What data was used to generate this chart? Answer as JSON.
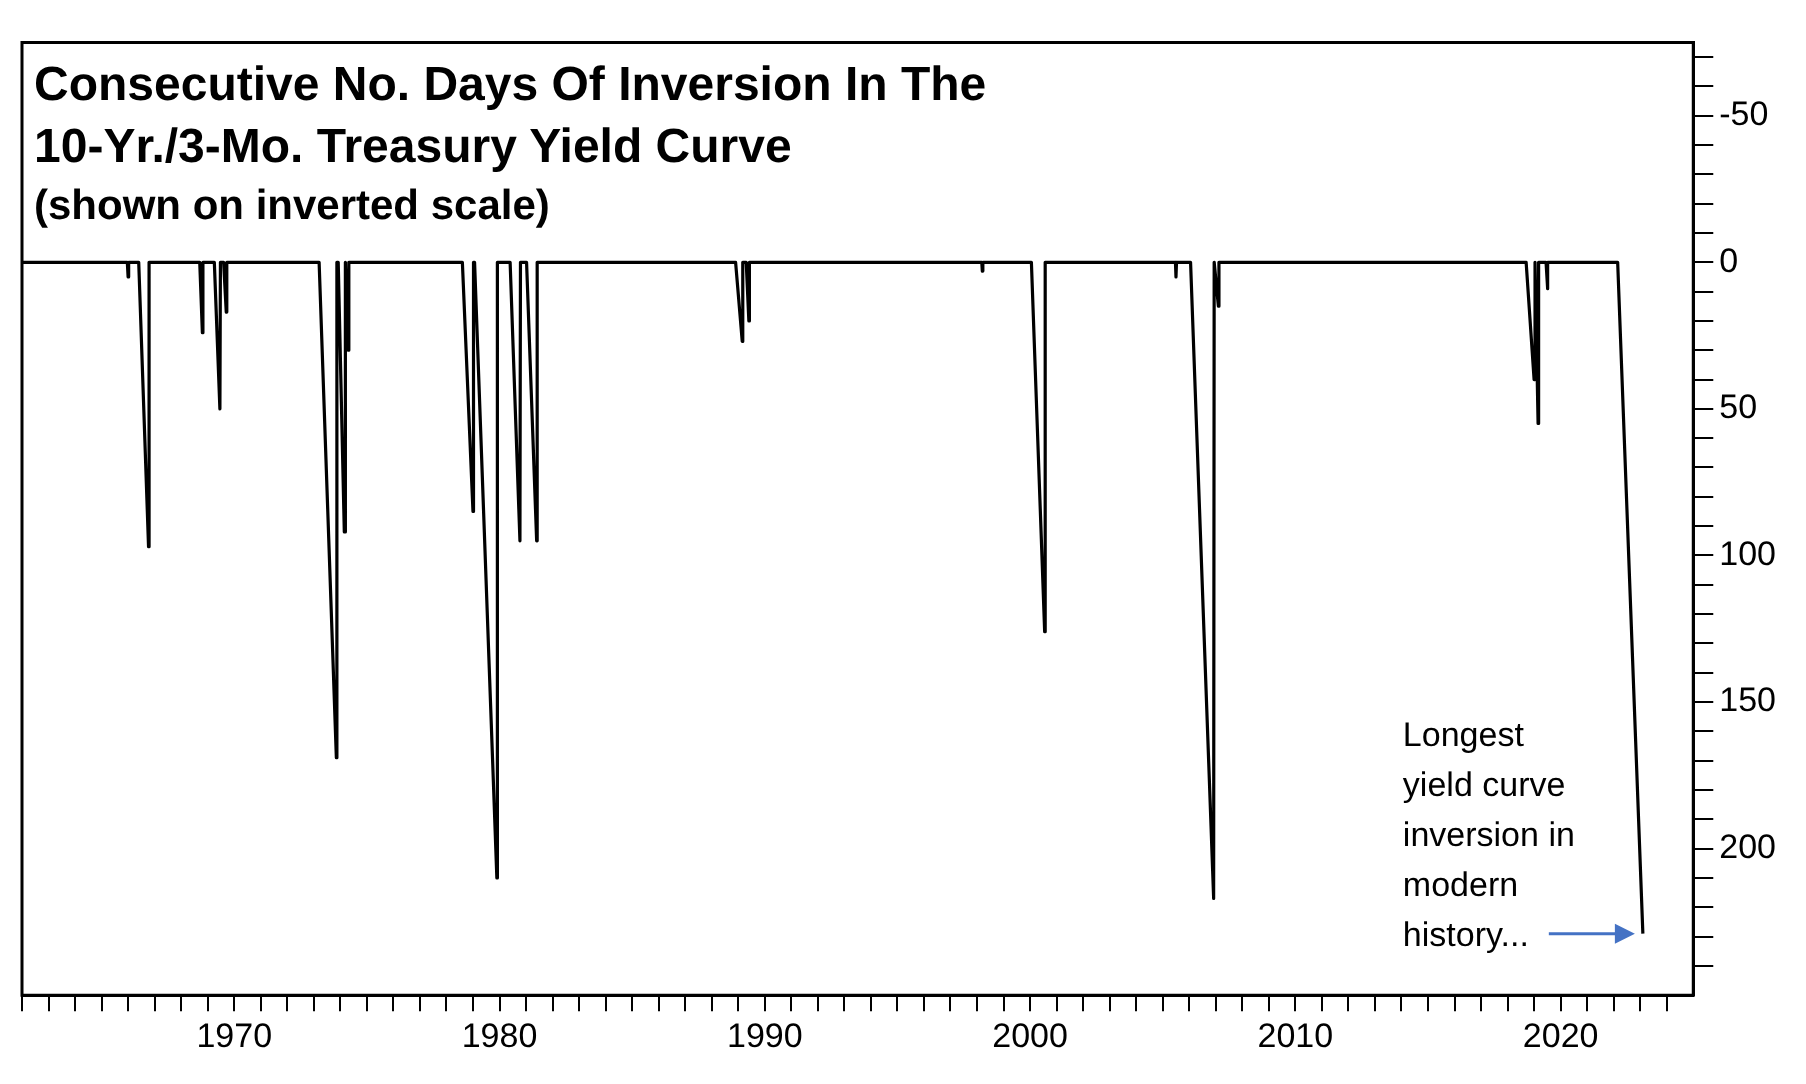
{
  "chart_data": {
    "type": "line",
    "title": "Consecutive No. Days Of Inversion In The 10-Yr./3-Mo. Treasury Yield Curve",
    "subtitle": "(shown on inverted scale)",
    "series": [
      {
        "color": "#000000",
        "x": [
          1962,
          1965.97,
          1966.0,
          1966.02,
          1966.4,
          1966.77,
          1966.79,
          1968.7,
          1968.8,
          1968.82,
          1969.25,
          1969.46,
          1969.48,
          1969.6,
          1969.7,
          1969.72,
          1973.2,
          1973.85,
          1973.87,
          1973.92,
          1974.15,
          1974.17,
          1974.21,
          1974.3,
          1974.32,
          1978.6,
          1979.0,
          1979.02,
          1979.06,
          1979.9,
          1979.92,
          1980.4,
          1980.77,
          1980.79,
          1981.02,
          1981.4,
          1981.42,
          1988.9,
          1989.15,
          1989.17,
          1989.3,
          1989.4,
          1989.42,
          1998.18,
          1998.2,
          1998.22,
          2000.05,
          2000.55,
          2000.57,
          2005.48,
          2005.5,
          2005.52,
          2006.05,
          2006.92,
          2006.94,
          2006.97,
          2007.1,
          2007.12,
          2018.7,
          2019.0,
          2019.02,
          2019.05,
          2019.15,
          2019.17,
          2019.45,
          2019.5,
          2019.52,
          2022.15,
          2023.1
        ],
        "values": [
          0,
          0,
          5,
          0,
          0,
          97,
          0,
          0,
          24,
          0,
          0,
          50,
          0,
          0,
          17,
          0,
          0,
          169,
          0,
          0,
          92,
          0,
          0,
          30,
          0,
          0,
          85,
          0,
          0,
          210,
          0,
          0,
          95,
          0,
          0,
          95,
          0,
          0,
          27,
          0,
          0,
          20,
          0,
          0,
          3,
          0,
          0,
          126,
          0,
          0,
          5,
          0,
          0,
          217,
          0,
          0,
          15,
          0,
          0,
          40,
          0,
          0,
          55,
          0,
          0,
          9,
          0,
          0,
          229
        ]
      }
    ],
    "xlim": [
      1962,
      2025
    ],
    "xticks": [
      {
        "value": 1962,
        "label": null
      },
      {
        "value": 1963,
        "label": null
      },
      {
        "value": 1964,
        "label": null
      },
      {
        "value": 1965,
        "label": null
      },
      {
        "value": 1966,
        "label": null
      },
      {
        "value": 1967,
        "label": null
      },
      {
        "value": 1968,
        "label": null
      },
      {
        "value": 1969,
        "label": null
      },
      1970,
      {
        "value": 1971,
        "label": null
      },
      {
        "value": 1972,
        "label": null
      },
      {
        "value": 1973,
        "label": null
      },
      {
        "value": 1974,
        "label": null
      },
      {
        "value": 1975,
        "label": null
      },
      {
        "value": 1976,
        "label": null
      },
      {
        "value": 1977,
        "label": null
      },
      {
        "value": 1978,
        "label": null
      },
      {
        "value": 1979,
        "label": null
      },
      1980,
      {
        "value": 1981,
        "label": null
      },
      {
        "value": 1982,
        "label": null
      },
      {
        "value": 1983,
        "label": null
      },
      {
        "value": 1984,
        "label": null
      },
      {
        "value": 1985,
        "label": null
      },
      {
        "value": 1986,
        "label": null
      },
      {
        "value": 1987,
        "label": null
      },
      {
        "value": 1988,
        "label": null
      },
      {
        "value": 1989,
        "label": null
      },
      1990,
      {
        "value": 1991,
        "label": null
      },
      {
        "value": 1992,
        "label": null
      },
      {
        "value": 1993,
        "label": null
      },
      {
        "value": 1994,
        "label": null
      },
      {
        "value": 1995,
        "label": null
      },
      {
        "value": 1996,
        "label": null
      },
      {
        "value": 1997,
        "label": null
      },
      {
        "value": 1998,
        "label": null
      },
      {
        "value": 1999,
        "label": null
      },
      2000,
      {
        "value": 2001,
        "label": null
      },
      {
        "value": 2002,
        "label": null
      },
      {
        "value": 2003,
        "label": null
      },
      {
        "value": 2004,
        "label": null
      },
      {
        "value": 2005,
        "label": null
      },
      {
        "value": 2006,
        "label": null
      },
      {
        "value": 2007,
        "label": null
      },
      {
        "value": 2008,
        "label": null
      },
      {
        "value": 2009,
        "label": null
      },
      2010,
      {
        "value": 2011,
        "label": null
      },
      {
        "value": 2012,
        "label": null
      },
      {
        "value": 2013,
        "label": null
      },
      {
        "value": 2014,
        "label": null
      },
      {
        "value": 2015,
        "label": null
      },
      {
        "value": 2016,
        "label": null
      },
      {
        "value": 2017,
        "label": null
      },
      {
        "value": 2018,
        "label": null
      },
      {
        "value": 2019,
        "label": null
      },
      2020,
      {
        "value": 2021,
        "label": null
      },
      {
        "value": 2022,
        "label": null
      },
      {
        "value": 2023,
        "label": null
      },
      {
        "value": 2024,
        "label": null
      }
    ],
    "ylim": [
      250,
      -75
    ],
    "yticks": [
      {
        "value": -70,
        "label": null
      },
      {
        "value": -60,
        "label": null
      },
      -50,
      {
        "value": -40,
        "label": null
      },
      {
        "value": -30,
        "label": null
      },
      {
        "value": -20,
        "label": null
      },
      {
        "value": -10,
        "label": null
      },
      0,
      {
        "value": 10,
        "label": null
      },
      {
        "value": 20,
        "label": null
      },
      {
        "value": 30,
        "label": null
      },
      {
        "value": 40,
        "label": null
      },
      50,
      {
        "value": 60,
        "label": null
      },
      {
        "value": 70,
        "label": null
      },
      {
        "value": 80,
        "label": null
      },
      {
        "value": 90,
        "label": null
      },
      100,
      {
        "value": 110,
        "label": null
      },
      {
        "value": 120,
        "label": null
      },
      {
        "value": 130,
        "label": null
      },
      {
        "value": 140,
        "label": null
      },
      150,
      {
        "value": 160,
        "label": null
      },
      {
        "value": 170,
        "label": null
      },
      {
        "value": 180,
        "label": null
      },
      {
        "value": 190,
        "label": null
      },
      200,
      {
        "value": 210,
        "label": null
      },
      {
        "value": 220,
        "label": null
      },
      {
        "value": 230,
        "label": null
      },
      {
        "value": 240,
        "label": null
      }
    ],
    "grid": false,
    "legend": false,
    "annotations": [
      {
        "text": "Longest yield curve inversion in modern history...",
        "x": 2023.1,
        "y": 229
      }
    ]
  }
}
